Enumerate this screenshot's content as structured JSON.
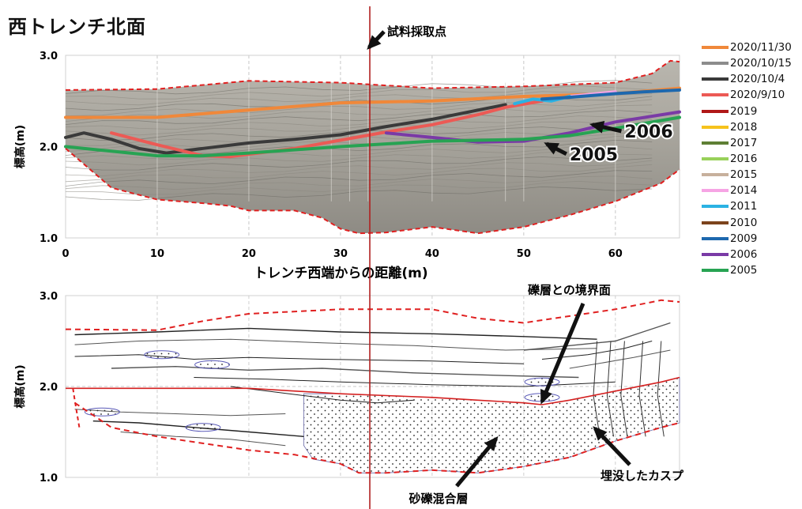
{
  "page": {
    "title": "西トレンチ北面",
    "sampling_point_label": "試料採取点"
  },
  "chart_data": [
    {
      "type": "line",
      "panel": "top",
      "xlabel": "トレンチ西端からの距離(m)",
      "ylabel": "標高(m)",
      "xlim": [
        0,
        67
      ],
      "ylim": [
        1.0,
        3.0
      ],
      "x_ticks": [
        "0",
        "10",
        "20",
        "30",
        "40",
        "50",
        "60"
      ],
      "y_ticks": [
        "1.0",
        "2.0",
        "3.0"
      ],
      "grid": true,
      "legend_position": "right",
      "background": "trench wall photograph",
      "series": [
        {
          "name": "2020/11/30",
          "color": "#f0883a",
          "x": [
            0,
            10,
            20,
            30,
            40,
            50,
            60,
            67
          ],
          "y": [
            2.32,
            2.32,
            2.4,
            2.48,
            2.5,
            2.55,
            2.58,
            2.64
          ]
        },
        {
          "name": "2020/10/15",
          "color": "#8c8c8c",
          "x": [],
          "y": []
        },
        {
          "name": "2020/10/4",
          "color": "#3a3a3a",
          "x": [
            0,
            2,
            5,
            8,
            11,
            15,
            20,
            25,
            30,
            35,
            40,
            45,
            48
          ],
          "y": [
            2.1,
            2.15,
            2.08,
            1.98,
            1.93,
            1.98,
            2.04,
            2.08,
            2.13,
            2.22,
            2.3,
            2.4,
            2.46
          ]
        },
        {
          "name": "2020/9/10",
          "color": "#ec5a55",
          "x": [
            5,
            10,
            15,
            18,
            25,
            30,
            35,
            40,
            45,
            48,
            52
          ],
          "y": [
            2.15,
            2.02,
            1.9,
            1.89,
            1.98,
            2.07,
            2.16,
            2.24,
            2.35,
            2.43,
            2.5
          ]
        },
        {
          "name": "2019",
          "color": "#b01818",
          "x": [],
          "y": []
        },
        {
          "name": "2018",
          "color": "#f6c21c",
          "x": [],
          "y": []
        },
        {
          "name": "2017",
          "color": "#5e7f34",
          "x": [],
          "y": []
        },
        {
          "name": "2016",
          "color": "#98d15a",
          "x": [],
          "y": []
        },
        {
          "name": "2015",
          "color": "#c7b09c",
          "x": [],
          "y": []
        },
        {
          "name": "2014",
          "color": "#f6a4e4",
          "x": [
            55,
            57,
            60
          ],
          "y": [
            2.55,
            2.57,
            2.6
          ]
        },
        {
          "name": "2011",
          "color": "#2bb2e3",
          "x": [
            49,
            51,
            53,
            55
          ],
          "y": [
            2.47,
            2.52,
            2.5,
            2.55
          ]
        },
        {
          "name": "2010",
          "color": "#7c431c",
          "x": [],
          "y": []
        },
        {
          "name": "2009",
          "color": "#1d68ae",
          "x": [
            52,
            55,
            60,
            63,
            67
          ],
          "y": [
            2.52,
            2.54,
            2.58,
            2.6,
            2.62
          ]
        },
        {
          "name": "2006",
          "color": "#7a3aa6",
          "x": [
            35,
            40,
            45,
            50,
            55,
            60,
            67
          ],
          "y": [
            2.15,
            2.1,
            2.05,
            2.06,
            2.15,
            2.27,
            2.38
          ]
        },
        {
          "name": "2005",
          "color": "#27a353",
          "x": [
            0,
            5,
            10,
            15,
            20,
            30,
            40,
            50,
            55,
            60,
            67
          ],
          "y": [
            2.0,
            1.95,
            1.9,
            1.9,
            1.93,
            2.0,
            2.06,
            2.08,
            2.12,
            2.2,
            2.32
          ]
        }
      ],
      "upper_boundary": {
        "x": [
          0,
          10,
          20,
          30,
          40,
          50,
          60,
          64,
          66,
          67
        ],
        "y": [
          2.62,
          2.63,
          2.72,
          2.7,
          2.64,
          2.66,
          2.7,
          2.8,
          2.94,
          2.93
        ]
      },
      "lower_boundary": {
        "x": [
          0,
          5,
          10,
          15,
          18,
          20,
          25,
          28,
          30,
          32,
          35,
          40,
          45,
          50,
          55,
          60,
          65,
          67
        ],
        "y": [
          1.98,
          1.55,
          1.42,
          1.38,
          1.35,
          1.3,
          1.3,
          1.22,
          1.1,
          1.05,
          1.06,
          1.12,
          1.05,
          1.12,
          1.25,
          1.4,
          1.6,
          1.75
        ]
      },
      "annotations": [
        {
          "text": "2006",
          "x": 61,
          "y": 2.1
        },
        {
          "text": "2005",
          "x": 55,
          "y": 1.85
        }
      ]
    },
    {
      "type": "line",
      "panel": "bottom",
      "ylabel": "標高(m)",
      "xlim": [
        0,
        67
      ],
      "ylim": [
        1.0,
        3.0
      ],
      "y_ticks": [
        "1.0",
        "2.0",
        "3.0"
      ],
      "grid": true,
      "background": "stratigraphic sketch",
      "gravel_boundary": {
        "color": "#d42020",
        "x": [
          0,
          10,
          20,
          30,
          35,
          40,
          45,
          50,
          52,
          55,
          60,
          65,
          67
        ],
        "y": [
          1.98,
          1.98,
          1.98,
          1.92,
          1.9,
          1.88,
          1.85,
          1.82,
          1.8,
          1.85,
          1.95,
          2.05,
          2.1
        ]
      },
      "upper_boundary": {
        "x": [
          0,
          10,
          15,
          20,
          30,
          40,
          45,
          50,
          60,
          65,
          67
        ],
        "y": [
          2.63,
          2.62,
          2.72,
          2.8,
          2.85,
          2.85,
          2.75,
          2.7,
          2.85,
          2.95,
          2.93
        ]
      },
      "lower_boundary": {
        "x": [
          1,
          5,
          10,
          20,
          25,
          30,
          32,
          35,
          40,
          45,
          50,
          55,
          60,
          65,
          67
        ],
        "y": [
          1.82,
          1.55,
          1.45,
          1.3,
          1.25,
          1.15,
          1.05,
          1.05,
          1.08,
          1.05,
          1.12,
          1.22,
          1.4,
          1.55,
          1.6
        ]
      },
      "annotations": [
        {
          "text": "礫層との境界面",
          "x": 59,
          "y": 2.95
        },
        {
          "text": "埋没したカスプ",
          "x": 70,
          "y": 0.98
        },
        {
          "text": "砂礫混合層",
          "x": 46,
          "y": 0.78
        }
      ]
    }
  ]
}
